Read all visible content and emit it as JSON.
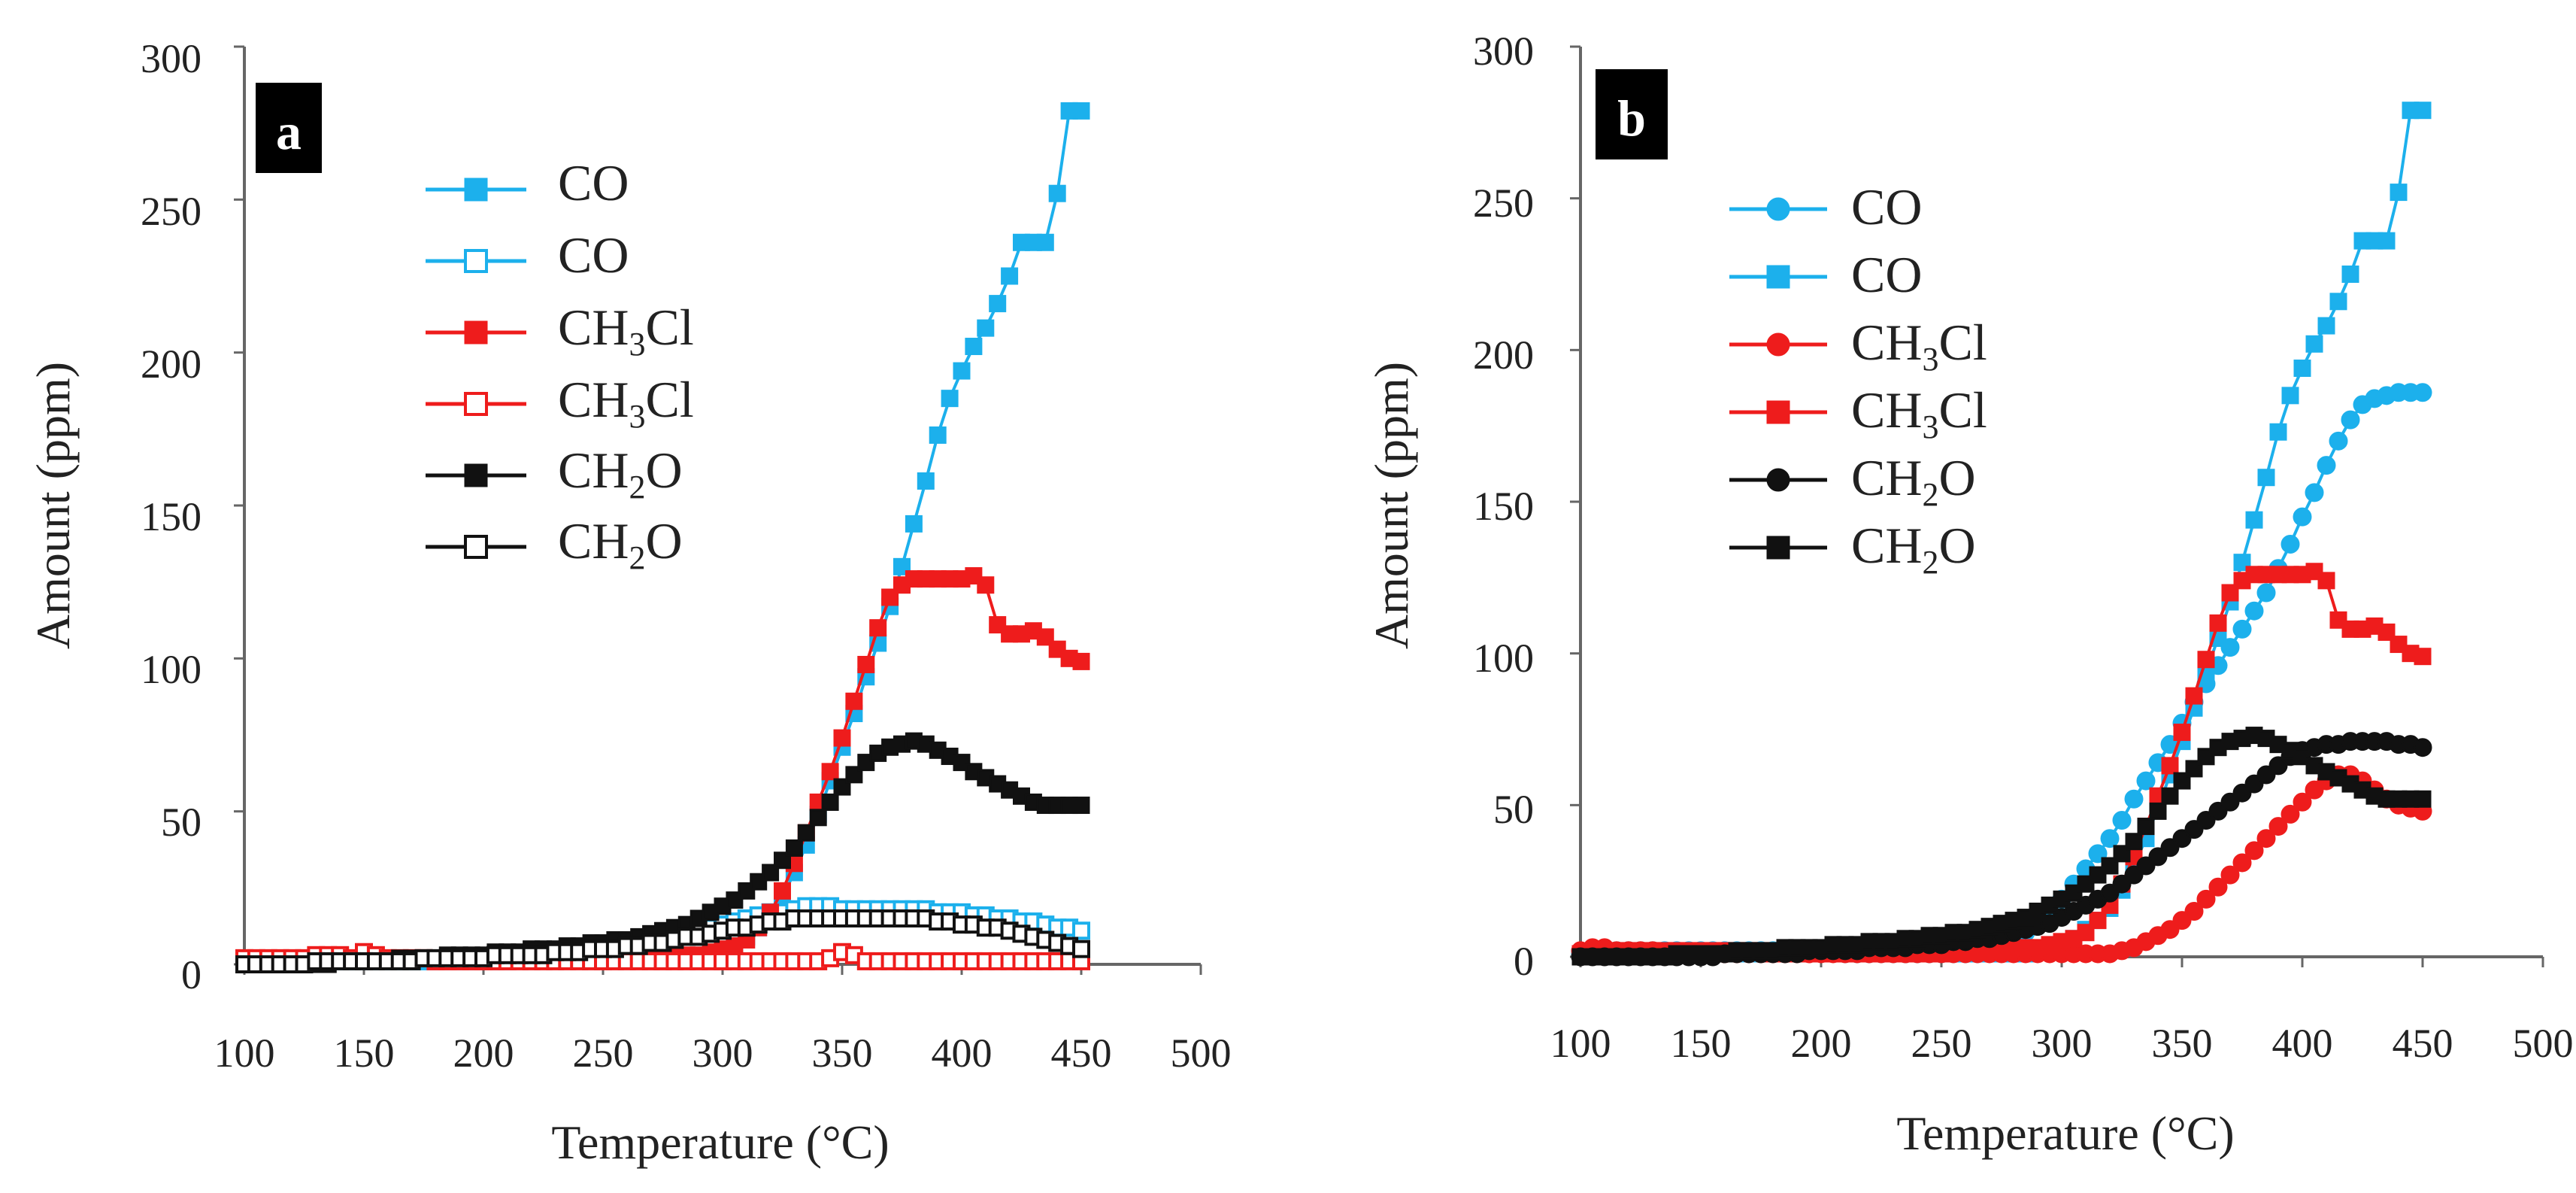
{
  "chart_data": [
    {
      "type": "line",
      "panel_label": "a",
      "title": "",
      "xlabel": "Temperature (°C)",
      "ylabel": "Amount (ppm)",
      "xlim": [
        100,
        500
      ],
      "ylim": [
        0,
        300
      ],
      "xticks": [
        "100",
        "150",
        "200",
        "250",
        "300",
        "350",
        "400",
        "450",
        "500"
      ],
      "yticks": [
        "0",
        "50",
        "100",
        "150",
        "200",
        "250",
        "300"
      ],
      "grid": false,
      "legend_position": "top-left",
      "x_step": 5,
      "x_start": 100,
      "series": [
        {
          "name": "CO",
          "marker": "square-filled",
          "color": "#1cb0ec",
          "values": [
            0,
            0,
            0,
            0,
            1,
            1,
            1,
            1,
            1,
            1,
            1,
            1,
            1,
            1,
            1,
            1,
            1,
            1,
            1,
            1,
            1,
            1,
            1,
            1,
            1,
            1,
            1,
            1,
            1,
            1,
            1,
            1,
            1,
            1,
            1,
            1,
            1,
            1,
            2,
            2,
            4,
            6,
            9,
            12,
            16,
            22,
            30,
            39,
            49,
            60,
            71,
            82,
            94,
            105,
            117,
            130,
            144,
            158,
            173,
            185,
            194,
            202,
            208,
            216,
            225,
            236,
            236,
            236,
            252,
            279,
            279
          ]
        },
        {
          "name": "CO",
          "marker": "square-open",
          "color": "#1cb0ec",
          "values": [
            1,
            1,
            1,
            1,
            1,
            1,
            1,
            1,
            1,
            1,
            1,
            1,
            1,
            1,
            1,
            1,
            1,
            1,
            1,
            1,
            1,
            1,
            1,
            2,
            2,
            2,
            2,
            3,
            3,
            3,
            4,
            4,
            5,
            6,
            7,
            8,
            9,
            10,
            11,
            12,
            13,
            14,
            15,
            16,
            17,
            17,
            18,
            19,
            19,
            19,
            18,
            18,
            18,
            18,
            18,
            18,
            18,
            18,
            17,
            17,
            17,
            16,
            16,
            15,
            15,
            14,
            14,
            13,
            12,
            12,
            11
          ]
        },
        {
          "name": "CH3Cl",
          "marker": "square-filled",
          "color": "#ee1c1c",
          "values": [
            1,
            1,
            2,
            2,
            2,
            2,
            2,
            2,
            2,
            2,
            2,
            2,
            2,
            2,
            2,
            2,
            1,
            1,
            1,
            1,
            1,
            1,
            1,
            1,
            1,
            1,
            1,
            1,
            1,
            1,
            1,
            2,
            2,
            2,
            2,
            2,
            3,
            3,
            3,
            4,
            5,
            6,
            8,
            12,
            17,
            24,
            33,
            43,
            53,
            63,
            74,
            86,
            98,
            110,
            120,
            124,
            126,
            126,
            126,
            126,
            126,
            127,
            124,
            111,
            108,
            108,
            109,
            107,
            103,
            100,
            99
          ]
        },
        {
          "name": "CH3Cl",
          "marker": "square-open",
          "color": "#ee1c1c",
          "values": [
            2,
            2,
            2,
            2,
            2,
            2,
            3,
            3,
            3,
            2,
            4,
            3,
            2,
            2,
            2,
            2,
            1,
            1,
            1,
            1,
            1,
            1,
            1,
            1,
            1,
            1,
            1,
            1,
            1,
            1,
            1,
            1,
            1,
            1,
            1,
            1,
            1,
            1,
            1,
            1,
            1,
            1,
            1,
            1,
            1,
            1,
            1,
            1,
            1,
            2,
            4,
            3,
            1,
            1,
            1,
            1,
            1,
            1,
            1,
            1,
            1,
            1,
            1,
            1,
            1,
            1,
            1,
            1,
            1,
            1,
            1
          ]
        },
        {
          "name": "CH2O",
          "marker": "square-filled",
          "color": "#111111",
          "values": [
            0,
            0,
            0,
            0,
            0,
            0,
            0,
            0,
            1,
            1,
            1,
            1,
            1,
            2,
            2,
            2,
            2,
            3,
            3,
            3,
            3,
            4,
            4,
            4,
            5,
            5,
            5,
            6,
            6,
            7,
            7,
            8,
            8,
            9,
            10,
            11,
            12,
            13,
            15,
            17,
            19,
            21,
            24,
            27,
            30,
            34,
            38,
            43,
            48,
            53,
            58,
            62,
            66,
            69,
            71,
            72,
            73,
            72,
            70,
            68,
            66,
            63,
            61,
            59,
            57,
            55,
            53,
            52,
            52,
            52,
            52
          ]
        },
        {
          "name": "CH2O",
          "marker": "square-open",
          "color": "#111111",
          "values": [
            0,
            0,
            0,
            0,
            0,
            0,
            1,
            1,
            1,
            1,
            1,
            1,
            1,
            1,
            1,
            2,
            2,
            2,
            2,
            2,
            2,
            3,
            3,
            3,
            3,
            3,
            4,
            4,
            4,
            5,
            5,
            5,
            6,
            6,
            7,
            7,
            8,
            9,
            9,
            10,
            11,
            12,
            12,
            13,
            14,
            14,
            15,
            15,
            15,
            15,
            15,
            15,
            15,
            15,
            15,
            15,
            15,
            15,
            14,
            14,
            13,
            13,
            12,
            12,
            11,
            10,
            9,
            8,
            7,
            6,
            5
          ]
        }
      ]
    },
    {
      "type": "line",
      "panel_label": "b",
      "title": "",
      "xlabel": "Temperature (°C)",
      "ylabel": "Amount (ppm)",
      "xlim": [
        100,
        500
      ],
      "ylim": [
        0,
        300
      ],
      "xticks": [
        "100",
        "150",
        "200",
        "250",
        "300",
        "350",
        "400",
        "450",
        "500"
      ],
      "yticks": [
        "0",
        "50",
        "100",
        "150",
        "200",
        "250",
        "300"
      ],
      "grid": false,
      "legend_position": "top-left",
      "x_step": 5,
      "x_start": 100,
      "series": [
        {
          "name": "CO",
          "marker": "circle-filled",
          "color": "#1cb0ec",
          "values": [
            1,
            2,
            2,
            2,
            2,
            2,
            2,
            2,
            2,
            2,
            2,
            2,
            2,
            2,
            2,
            2,
            2,
            2,
            2,
            2,
            2,
            2,
            1,
            1,
            1,
            1,
            1,
            1,
            1,
            1,
            1,
            1,
            1,
            1,
            2,
            3,
            5,
            8,
            11,
            15,
            19,
            24,
            29,
            34,
            39,
            45,
            52,
            58,
            64,
            70,
            77,
            84,
            90,
            96,
            102,
            108,
            114,
            120,
            128,
            136,
            145,
            153,
            162,
            170,
            177,
            182,
            184,
            185,
            186,
            186,
            186
          ]
        },
        {
          "name": "CO",
          "marker": "square-filled",
          "color": "#1cb0ec",
          "values": [
            0,
            0,
            0,
            0,
            1,
            1,
            1,
            1,
            1,
            1,
            1,
            1,
            1,
            1,
            1,
            1,
            1,
            1,
            1,
            1,
            1,
            1,
            1,
            1,
            1,
            1,
            1,
            1,
            1,
            1,
            1,
            1,
            1,
            1,
            1,
            1,
            1,
            1,
            2,
            2,
            4,
            6,
            9,
            12,
            16,
            22,
            30,
            39,
            49,
            60,
            71,
            82,
            94,
            105,
            117,
            130,
            144,
            158,
            173,
            185,
            194,
            202,
            208,
            216,
            225,
            236,
            236,
            236,
            252,
            279,
            279
          ]
        },
        {
          "name": "CH3Cl",
          "marker": "circle-filled",
          "color": "#ee1c1c",
          "values": [
            2,
            3,
            3,
            2,
            2,
            2,
            2,
            1,
            1,
            1,
            1,
            1,
            1,
            1,
            1,
            1,
            1,
            1,
            1,
            1,
            1,
            1,
            1,
            1,
            1,
            1,
            1,
            1,
            1,
            1,
            1,
            1,
            1,
            1,
            1,
            1,
            1,
            1,
            1,
            1,
            1,
            1,
            1,
            1,
            1,
            2,
            3,
            5,
            7,
            9,
            12,
            15,
            19,
            23,
            27,
            31,
            35,
            39,
            43,
            47,
            51,
            55,
            58,
            60,
            60,
            58,
            55,
            52,
            50,
            49,
            48
          ]
        },
        {
          "name": "CH3Cl",
          "marker": "square-filled",
          "color": "#ee1c1c",
          "values": [
            1,
            1,
            2,
            2,
            2,
            2,
            2,
            2,
            2,
            2,
            2,
            2,
            2,
            2,
            2,
            2,
            1,
            1,
            1,
            1,
            1,
            1,
            1,
            1,
            1,
            1,
            1,
            1,
            1,
            1,
            1,
            2,
            2,
            2,
            2,
            2,
            3,
            3,
            3,
            4,
            5,
            6,
            8,
            12,
            17,
            24,
            33,
            43,
            53,
            63,
            74,
            86,
            98,
            110,
            120,
            124,
            126,
            126,
            126,
            126,
            126,
            127,
            124,
            111,
            108,
            108,
            109,
            107,
            103,
            100,
            99
          ]
        },
        {
          "name": "CH2O",
          "marker": "circle-filled",
          "color": "#111111",
          "values": [
            0,
            0,
            0,
            0,
            0,
            0,
            0,
            0,
            0,
            0,
            0,
            0,
            1,
            1,
            1,
            1,
            1,
            1,
            1,
            2,
            2,
            2,
            2,
            2,
            3,
            3,
            3,
            3,
            4,
            4,
            4,
            5,
            5,
            6,
            6,
            7,
            8,
            9,
            10,
            11,
            13,
            15,
            17,
            19,
            21,
            24,
            27,
            30,
            33,
            36,
            39,
            42,
            45,
            48,
            51,
            54,
            57,
            60,
            63,
            66,
            68,
            69,
            70,
            70,
            71,
            71,
            71,
            71,
            70,
            70,
            69
          ]
        },
        {
          "name": "CH2O",
          "marker": "square-filled",
          "color": "#111111",
          "values": [
            0,
            0,
            0,
            0,
            0,
            0,
            0,
            0,
            1,
            1,
            1,
            1,
            1,
            2,
            2,
            2,
            2,
            3,
            3,
            3,
            3,
            4,
            4,
            4,
            5,
            5,
            5,
            6,
            6,
            7,
            7,
            8,
            8,
            9,
            10,
            11,
            12,
            13,
            15,
            17,
            19,
            21,
            24,
            27,
            30,
            34,
            38,
            43,
            48,
            53,
            58,
            62,
            66,
            69,
            71,
            72,
            73,
            72,
            70,
            68,
            66,
            63,
            61,
            59,
            57,
            55,
            53,
            52,
            52,
            52,
            52
          ]
        }
      ]
    }
  ]
}
